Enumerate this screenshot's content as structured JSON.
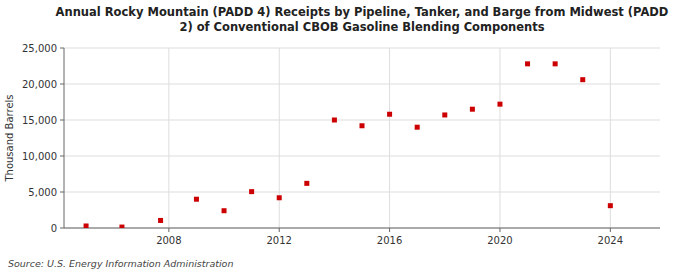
{
  "chart_data": {
    "type": "scatter",
    "title": "Annual Rocky Mountain (PADD 4) Receipts by Pipeline, Tanker, and Barge from Midwest (PADD\n2) of Conventional CBOB Gasoline Blending Components",
    "y_label": "Thousand Barrels",
    "source": "Source: U.S. Energy Information Administration",
    "color": "#cc0000",
    "marker": "square",
    "grid": true,
    "x": [
      2005.0,
      2006.3,
      2007.7,
      2009.0,
      2010.0,
      2011.0,
      2012.0,
      2013.0,
      2014.0,
      2015.0,
      2016.0,
      2017.0,
      2018.0,
      2019.0,
      2020.0,
      2021.0,
      2022.0,
      2023.0,
      2024.0
    ],
    "values": [
      280,
      130,
      1050,
      4000,
      2400,
      5050,
      4200,
      6200,
      15000,
      14200,
      15800,
      14000,
      15700,
      16500,
      17200,
      22800,
      22800,
      20600,
      3100
    ],
    "xlim": [
      2004.2,
      2025.8
    ],
    "xticks": [
      2008,
      2012,
      2016,
      2020,
      2024
    ],
    "ylim": [
      0,
      25000
    ],
    "yticks": [
      0,
      {
        "value": 5000,
        "label": "5,000"
      },
      {
        "value": 10000,
        "label": "10,000"
      },
      {
        "value": 15000,
        "label": "15,000"
      },
      {
        "value": 20000,
        "label": "20,000"
      },
      {
        "value": 25000,
        "label": "25,000"
      }
    ]
  }
}
